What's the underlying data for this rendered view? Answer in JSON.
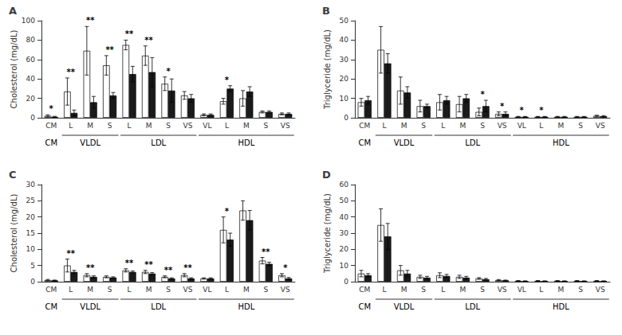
{
  "chart_data": [
    {
      "type": "bar",
      "title": "A",
      "ylabel": "Cholesterol (mg/dL)",
      "categories": [
        "CM",
        "L",
        "M",
        "S",
        "L",
        "M",
        "S",
        "VS",
        "VL",
        "L",
        "M",
        "S",
        "VS"
      ],
      "category_groups": [
        "CM",
        "VLDL",
        "VLDL",
        "VLDL",
        "LDL",
        "LDL",
        "LDL",
        "LDL",
        "HDL",
        "HDL",
        "HDL",
        "HDL",
        "HDL"
      ],
      "series": [
        {
          "color": "#ffffff",
          "values": [
            2,
            27,
            69,
            54,
            75,
            64,
            35,
            23,
            3,
            17,
            20,
            6,
            4
          ],
          "errors": [
            1,
            14,
            25,
            10,
            5,
            10,
            7,
            4,
            1,
            3,
            8,
            1,
            1
          ]
        },
        {
          "color": "#1a1a1a",
          "values": [
            1,
            5,
            16,
            23,
            45,
            47,
            28,
            20,
            3,
            30,
            27,
            6,
            4
          ],
          "errors": [
            0.5,
            3,
            6,
            3,
            8,
            15,
            12,
            4,
            1,
            3,
            5,
            1,
            1
          ]
        }
      ],
      "annotations": [
        "*",
        "**",
        "**",
        "**",
        "**",
        "**",
        "*",
        null,
        null,
        "*",
        null,
        null,
        null
      ],
      "edge_color": "#000000",
      "ylim": [
        0,
        100
      ],
      "yticks": [
        0,
        20,
        40,
        60,
        80,
        100
      ],
      "grid": false
    },
    {
      "type": "bar",
      "title": "B",
      "ylabel": "Triglyceride (mg/dL)",
      "categories": [
        "CM",
        "L",
        "M",
        "S",
        "L",
        "M",
        "S",
        "VS",
        "VL",
        "L",
        "M",
        "S",
        "VS"
      ],
      "category_groups": [
        "CM",
        "VLDL",
        "VLDL",
        "VLDL",
        "LDL",
        "LDL",
        "LDL",
        "LDL",
        "HDL",
        "HDL",
        "HDL",
        "HDL",
        "HDL"
      ],
      "series": [
        {
          "color": "#ffffff",
          "values": [
            8,
            35,
            14,
            6,
            8,
            7,
            3,
            2,
            0.5,
            0.5,
            0.5,
            0.5,
            1
          ],
          "errors": [
            2,
            12,
            7,
            3,
            4,
            4,
            2,
            1,
            0.2,
            0.2,
            0.2,
            0.2,
            0.3
          ]
        },
        {
          "color": "#1a1a1a",
          "values": [
            9,
            28,
            13,
            6,
            9,
            10,
            6,
            2,
            0.5,
            0.5,
            0.5,
            0.5,
            0.8
          ],
          "errors": [
            2,
            5,
            3,
            1,
            2,
            2,
            3,
            1,
            0.2,
            0.2,
            0.2,
            0.2,
            0.3
          ]
        }
      ],
      "annotations": [
        null,
        null,
        null,
        null,
        null,
        null,
        "*",
        "*",
        "*",
        "*",
        null,
        null,
        null
      ],
      "edge_color": "#000000",
      "ylim": [
        0,
        50
      ],
      "yticks": [
        0,
        10,
        20,
        30,
        40,
        50
      ],
      "grid": false
    },
    {
      "type": "bar",
      "title": "C",
      "ylabel": "Cholesterol (mg/dL)",
      "categories": [
        "CM",
        "L",
        "M",
        "S",
        "L",
        "M",
        "S",
        "VS",
        "VL",
        "L",
        "M",
        "S",
        "VS"
      ],
      "category_groups": [
        "CM",
        "VLDL",
        "VLDL",
        "VLDL",
        "LDL",
        "LDL",
        "LDL",
        "LDL",
        "HDL",
        "HDL",
        "HDL",
        "HDL",
        "HDL"
      ],
      "series": [
        {
          "color": "#ffffff",
          "values": [
            0.5,
            5,
            2,
            1.5,
            3.5,
            3,
            1.5,
            2,
            1,
            16,
            22,
            6.5,
            2
          ],
          "errors": [
            0.2,
            2,
            0.5,
            0.3,
            0.5,
            0.5,
            0.3,
            0.5,
            0.2,
            4,
            3,
            1,
            0.5
          ]
        },
        {
          "color": "#1a1a1a",
          "values": [
            0.4,
            3,
            1.5,
            1.3,
            3,
            2.5,
            1,
            1,
            1,
            13,
            19,
            5.5,
            1
          ],
          "errors": [
            0.1,
            0.5,
            0.3,
            0.2,
            0.3,
            0.3,
            0.2,
            0.2,
            0.2,
            2,
            3,
            0.5,
            0.3
          ]
        }
      ],
      "annotations": [
        null,
        "**",
        "**",
        null,
        "**",
        "**",
        "**",
        "**",
        null,
        "*",
        null,
        "**",
        "*"
      ],
      "edge_color": "#000000",
      "ylim": [
        0,
        30
      ],
      "yticks": [
        0,
        5,
        10,
        15,
        20,
        25,
        30
      ],
      "grid": false
    },
    {
      "type": "bar",
      "title": "D",
      "ylabel": "Triglyceride (mg/dL)",
      "categories": [
        "CM",
        "L",
        "M",
        "S",
        "L",
        "M",
        "S",
        "VS",
        "VL",
        "L",
        "M",
        "S",
        "VS"
      ],
      "category_groups": [
        "CM",
        "VLDL",
        "VLDL",
        "VLDL",
        "LDL",
        "LDL",
        "LDL",
        "LDL",
        "HDL",
        "HDL",
        "HDL",
        "HDL",
        "HDL"
      ],
      "series": [
        {
          "color": "#ffffff",
          "values": [
            5,
            35,
            7,
            3,
            4,
            3,
            2,
            1,
            0.5,
            0.5,
            0.5,
            0.5,
            0.5
          ],
          "errors": [
            2,
            10,
            3,
            1,
            1.5,
            1,
            0.5,
            0.3,
            0.2,
            0.2,
            0.2,
            0.2,
            0.2
          ]
        },
        {
          "color": "#1a1a1a",
          "values": [
            4,
            28,
            5,
            2.5,
            3.5,
            2.5,
            1.5,
            0.8,
            0.4,
            0.4,
            0.4,
            0.4,
            0.4
          ],
          "errors": [
            1,
            8,
            2,
            0.8,
            1,
            0.8,
            0.5,
            0.2,
            0.1,
            0.1,
            0.1,
            0.1,
            0.1
          ]
        }
      ],
      "edge_color": "#000000",
      "ylim": [
        0,
        60
      ],
      "yticks": [
        0,
        10,
        20,
        30,
        40,
        50,
        60
      ],
      "grid": false
    }
  ]
}
